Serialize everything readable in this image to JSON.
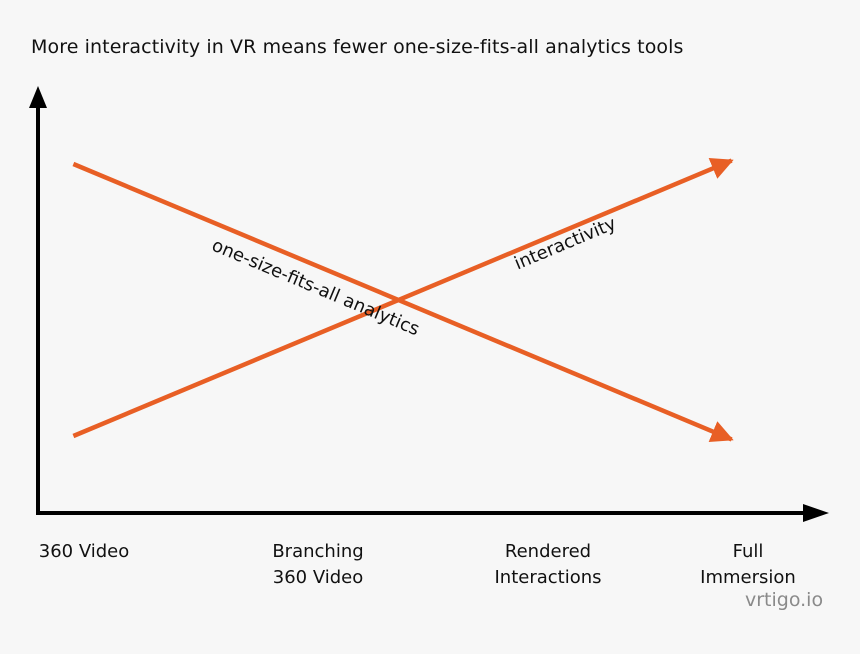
{
  "chart_data": {
    "type": "line",
    "title": "More interactivity in VR means fewer one-size-fits-all analytics tools",
    "xlabel": "",
    "ylabel": "",
    "categories": [
      "360 Video",
      "Branching\n360 Video",
      "Rendered\nInteractions",
      "Full Immersion"
    ],
    "x_range": [
      0,
      3
    ],
    "ylim": [
      0,
      10
    ],
    "series": [
      {
        "name": "one-size-fits-all analytics",
        "points": [
          {
            "x": -0.05,
            "y": 9.0
          },
          {
            "x": 3.05,
            "y": 0.9
          }
        ],
        "color": "#e85f25"
      },
      {
        "name": "interactivity",
        "points": [
          {
            "x": -0.05,
            "y": 1.0
          },
          {
            "x": 3.05,
            "y": 9.1
          }
        ],
        "color": "#e85f25"
      }
    ],
    "grid": false,
    "legend": "inline labels on lines"
  },
  "watermark": "vrtigo.io",
  "colors": {
    "line": "#e85f25",
    "axis": "#000000",
    "background": "#f7f7f7"
  }
}
